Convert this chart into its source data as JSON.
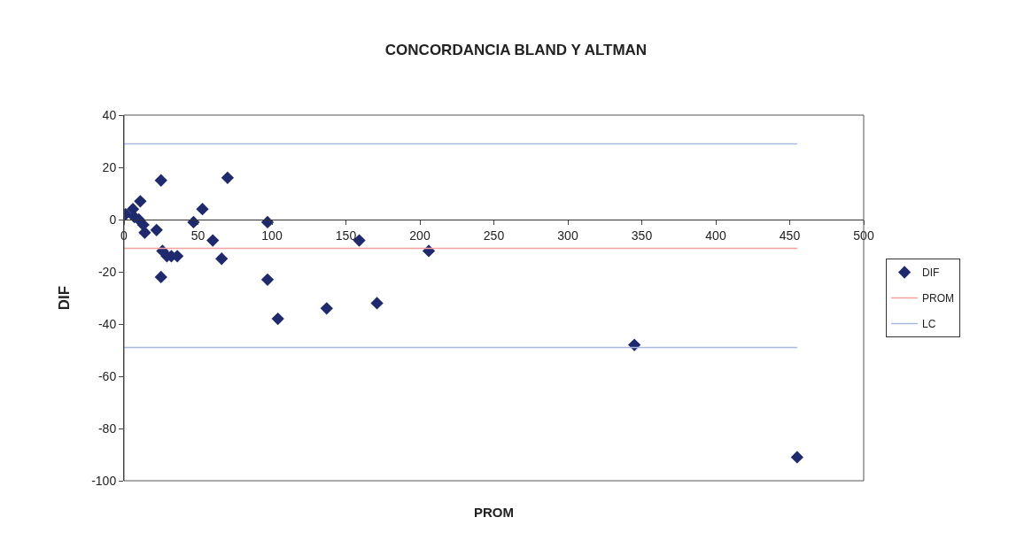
{
  "chart_data": {
    "type": "scatter",
    "title": "CONCORDANCIA BLAND Y ALTMAN",
    "xlabel": "PROM",
    "ylabel": "DIF",
    "xlim": [
      0,
      500
    ],
    "xticks": [
      0,
      50,
      100,
      150,
      200,
      250,
      300,
      350,
      400,
      450,
      500
    ],
    "ylim": [
      -100,
      40
    ],
    "yticks": [
      -100,
      -80,
      -60,
      -40,
      -20,
      0,
      20,
      40
    ],
    "legend": "right",
    "series": [
      {
        "name": "DIF",
        "marker": "diamond",
        "color": "#1f2a6e",
        "x": [
          1,
          6,
          11,
          7,
          10,
          13,
          14,
          22,
          25,
          26,
          29,
          32,
          36,
          25,
          47,
          53,
          60,
          66,
          70,
          97,
          97,
          104,
          137,
          159,
          171,
          206,
          345,
          455
        ],
        "values": [
          2,
          4,
          7,
          1,
          0,
          -2,
          -5,
          -4,
          15,
          -12,
          -14,
          -14,
          -14,
          -22,
          -1,
          4,
          -8,
          -15,
          16,
          -1,
          -23,
          -38,
          -34,
          -8,
          -32,
          -12,
          -48,
          -91
        ]
      },
      {
        "name": "PROM",
        "type": "line",
        "color": "#f4a0a0",
        "x": [
          0,
          455
        ],
        "values": [
          -11,
          -11
        ]
      },
      {
        "name": "LC",
        "type": "line",
        "color": "#a8b8e0",
        "x": [
          0,
          455
        ],
        "values": [
          29,
          29
        ]
      },
      {
        "type": "line",
        "color": "#a8b8e0",
        "x": [
          0,
          455
        ],
        "values": [
          -49,
          -49
        ]
      }
    ]
  }
}
